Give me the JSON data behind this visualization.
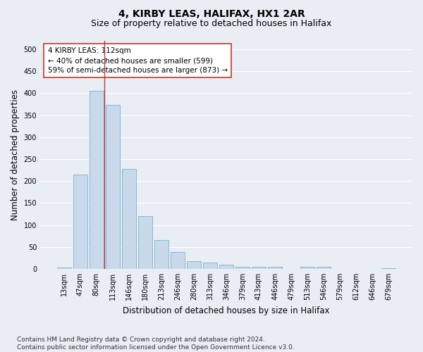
{
  "title_line1": "4, KIRBY LEAS, HALIFAX, HX1 2AR",
  "title_line2": "Size of property relative to detached houses in Halifax",
  "xlabel": "Distribution of detached houses by size in Halifax",
  "ylabel": "Number of detached properties",
  "bar_labels": [
    "13sqm",
    "47sqm",
    "80sqm",
    "113sqm",
    "146sqm",
    "180sqm",
    "213sqm",
    "246sqm",
    "280sqm",
    "313sqm",
    "346sqm",
    "379sqm",
    "413sqm",
    "446sqm",
    "479sqm",
    "513sqm",
    "546sqm",
    "579sqm",
    "612sqm",
    "646sqm",
    "679sqm"
  ],
  "bar_heights": [
    3,
    215,
    405,
    373,
    228,
    120,
    65,
    39,
    17,
    15,
    10,
    5,
    5,
    5,
    0,
    4,
    4,
    0,
    0,
    0,
    2
  ],
  "bar_color": "#c9d9ea",
  "bar_edge_color": "#7aafd4",
  "vline_x_index": 2,
  "vline_color": "#c0392b",
  "annotation_text": "4 KIRBY LEAS: 112sqm\n← 40% of detached houses are smaller (599)\n59% of semi-detached houses are larger (873) →",
  "annotation_box_color": "#ffffff",
  "annotation_box_edge": "#c0392b",
  "ylim": [
    0,
    520
  ],
  "yticks": [
    0,
    50,
    100,
    150,
    200,
    250,
    300,
    350,
    400,
    450,
    500
  ],
  "footnote": "Contains HM Land Registry data © Crown copyright and database right 2024.\nContains public sector information licensed under the Open Government Licence v3.0.",
  "bg_color": "#e8eef4",
  "plot_bg_color": "#e8eef4",
  "grid_color": "#ffffff",
  "title_fontsize": 10,
  "subtitle_fontsize": 9,
  "axis_label_fontsize": 8.5,
  "tick_fontsize": 7,
  "annotation_fontsize": 7.5,
  "footnote_fontsize": 6.5
}
